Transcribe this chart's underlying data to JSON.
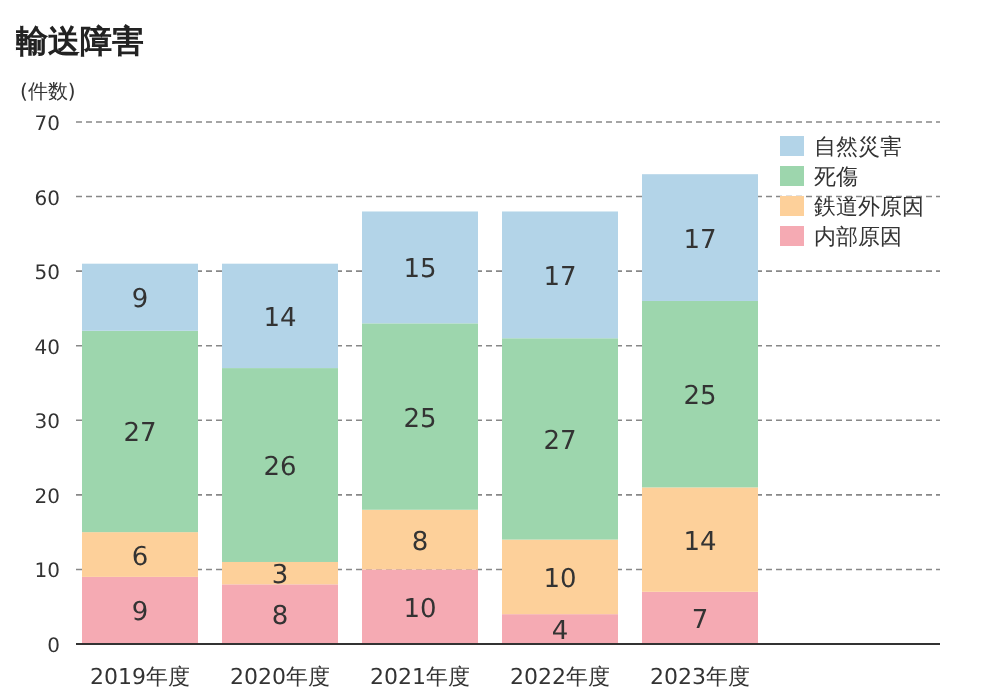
{
  "chart_data": {
    "type": "bar",
    "stacked": true,
    "title": "輸送障害",
    "ylabel": "(件数)",
    "categories": [
      "2019年度",
      "2020年度",
      "2021年度",
      "2022年度",
      "2023年度"
    ],
    "series": [
      {
        "name": "内部原因",
        "color": "#f5aab3",
        "values": [
          9,
          8,
          10,
          4,
          7
        ]
      },
      {
        "name": "鉄道外原因",
        "color": "#fdd09a",
        "values": [
          6,
          3,
          8,
          10,
          14
        ]
      },
      {
        "name": "死傷",
        "color": "#9dd6ad",
        "values": [
          27,
          26,
          25,
          27,
          25
        ]
      },
      {
        "name": "自然災害",
        "color": "#b3d4e8",
        "values": [
          9,
          14,
          15,
          17,
          17
        ]
      }
    ],
    "ylim": [
      0,
      70
    ],
    "yticks": [
      0,
      10,
      20,
      30,
      40,
      50,
      60,
      70
    ],
    "grid": "y",
    "legend": "top right",
    "data_labels": true
  }
}
